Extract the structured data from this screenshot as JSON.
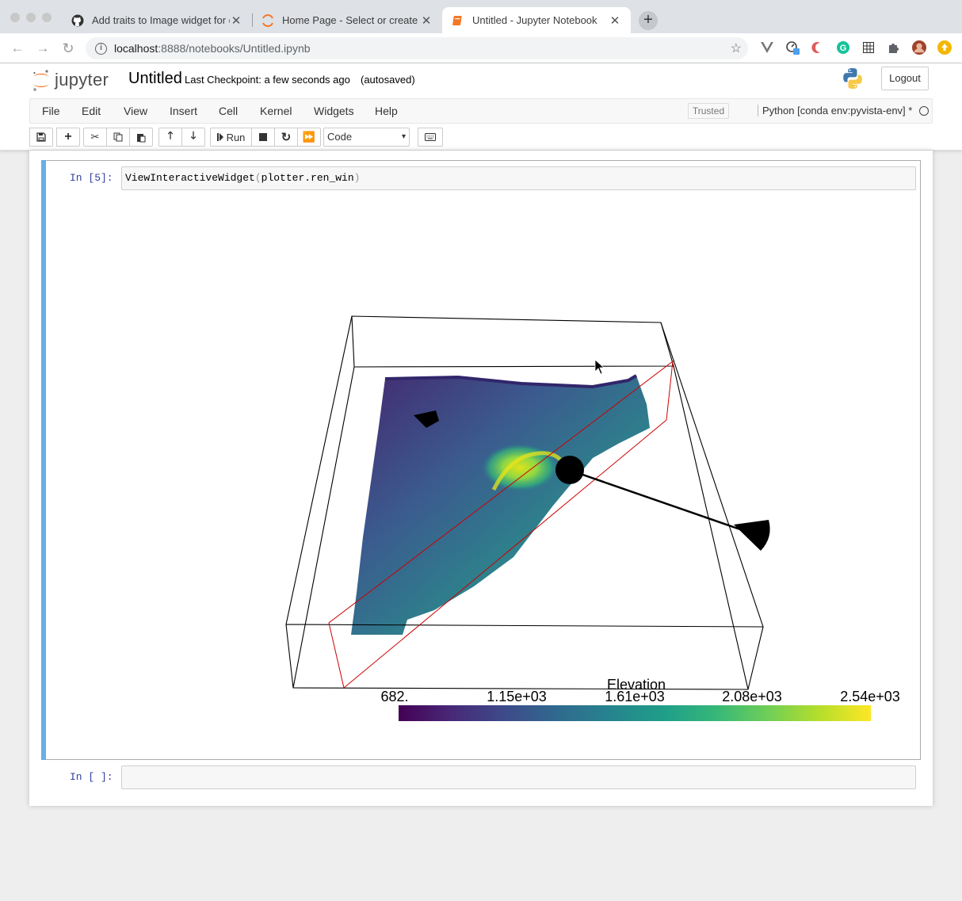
{
  "browser": {
    "tabs": [
      {
        "title": "Add traits to Image widget for d",
        "icon": "github-icon"
      },
      {
        "title": "Home Page - Select or create a",
        "icon": "jupyter-icon"
      },
      {
        "title": "Untitled - Jupyter Notebook",
        "icon": "notebook-icon",
        "active": true
      }
    ],
    "new_tab": "+",
    "url_host": "localhost",
    "url_rest": ":8888/notebooks/Untitled.ipynb"
  },
  "jupyter": {
    "logo_text": "jupyter",
    "notebook_name": "Untitled",
    "checkpoint": "Last Checkpoint: a few seconds ago",
    "autosaved": "(autosaved)",
    "logout": "Logout",
    "menu": [
      "File",
      "Edit",
      "View",
      "Insert",
      "Cell",
      "Kernel",
      "Widgets",
      "Help"
    ],
    "trusted": "Trusted",
    "kernel": "Python [conda env:pyvista-env] *",
    "toolbar": {
      "run_label": "Run",
      "cell_type": "Code"
    }
  },
  "cells": [
    {
      "prompt": "In [5]:",
      "code_name": "ViewInteractiveWidget",
      "code_open": "(",
      "code_arg": "plotter.ren_win",
      "code_close": ")"
    },
    {
      "prompt": "In [ ]:",
      "code": ""
    }
  ],
  "render": {
    "scalar_bar_title": "Elevation",
    "scalar_bar_labels": [
      "682.",
      "1.15e+03",
      "1.61e+03",
      "2.08e+03",
      "2.54e+03"
    ],
    "colormap": [
      "#440154",
      "#482878",
      "#3e4989",
      "#31688e",
      "#26828e",
      "#1f9e89",
      "#35b779",
      "#6ece58",
      "#b5de2b",
      "#fde725"
    ],
    "outline_color": "#000000",
    "plane_color": "#cc0000"
  }
}
